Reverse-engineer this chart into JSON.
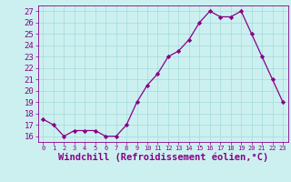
{
  "x": [
    0,
    1,
    2,
    3,
    4,
    5,
    6,
    7,
    8,
    9,
    10,
    11,
    12,
    13,
    14,
    15,
    16,
    17,
    18,
    19,
    20,
    21,
    22,
    23
  ],
  "y": [
    17.5,
    17.0,
    16.0,
    16.5,
    16.5,
    16.5,
    16.0,
    16.0,
    17.0,
    19.0,
    20.5,
    21.5,
    23.0,
    23.5,
    24.5,
    26.0,
    27.0,
    26.5,
    26.5,
    27.0,
    25.0,
    23.0,
    21.0,
    19.0
  ],
  "line_color": "#880088",
  "marker_color": "#880088",
  "bg_color": "#CCF0F0",
  "grid_color": "#AADDDD",
  "xlabel": "Windchill (Refroidissement éolien,°C)",
  "xlabel_color": "#880088",
  "ylim": [
    15.5,
    27.5
  ],
  "xlim": [
    -0.5,
    23.5
  ],
  "yticks": [
    16,
    17,
    18,
    19,
    20,
    21,
    22,
    23,
    24,
    25,
    26,
    27
  ],
  "xticks": [
    0,
    1,
    2,
    3,
    4,
    5,
    6,
    7,
    8,
    9,
    10,
    11,
    12,
    13,
    14,
    15,
    16,
    17,
    18,
    19,
    20,
    21,
    22,
    23
  ],
  "tick_color": "#880088",
  "ytick_fontsize": 6.5,
  "xtick_fontsize": 5.0,
  "xlabel_fontsize": 7.5
}
